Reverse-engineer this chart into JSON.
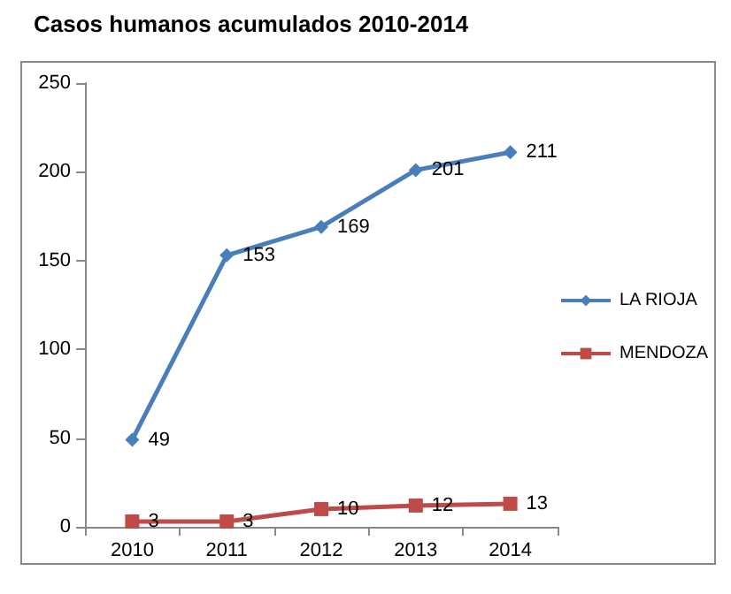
{
  "chart_data": {
    "type": "line",
    "title": "Casos humanos acumulados 2010-2014",
    "categories": [
      "2010",
      "2011",
      "2012",
      "2013",
      "2014"
    ],
    "series": [
      {
        "name": "LA RIOJA",
        "color": "#4a7ebb",
        "marker": "diamond",
        "values": [
          49,
          153,
          169,
          201,
          211
        ]
      },
      {
        "name": "MENDOZA",
        "color": "#be4b48",
        "marker": "square",
        "values": [
          3,
          3,
          10,
          12,
          13
        ]
      }
    ],
    "ylim": [
      0,
      250
    ],
    "yticks": [
      0,
      50,
      100,
      150,
      200,
      250
    ],
    "grid": false,
    "legend": "right",
    "data_labels": true
  }
}
